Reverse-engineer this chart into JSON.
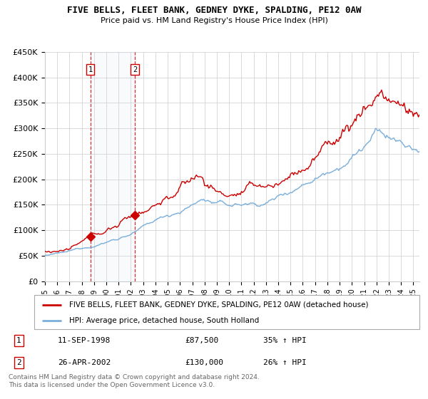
{
  "title": "FIVE BELLS, FLEET BANK, GEDNEY DYKE, SPALDING, PE12 0AW",
  "subtitle": "Price paid vs. HM Land Registry's House Price Index (HPI)",
  "ylim": [
    0,
    450000
  ],
  "yticks": [
    0,
    50000,
    100000,
    150000,
    200000,
    250000,
    300000,
    350000,
    400000,
    450000
  ],
  "ytick_labels": [
    "£0",
    "£50K",
    "£100K",
    "£150K",
    "£200K",
    "£250K",
    "£300K",
    "£350K",
    "£400K",
    "£450K"
  ],
  "grid_color": "#cccccc",
  "transaction1": {
    "label": "1",
    "date_x": 1998.69,
    "price": 87500,
    "date_str": "11-SEP-1998",
    "price_str": "£87,500",
    "hpi_str": "35% ↑ HPI"
  },
  "transaction2": {
    "label": "2",
    "date_x": 2002.32,
    "price": 130000,
    "date_str": "26-APR-2002",
    "price_str": "£130,000",
    "hpi_str": "26% ↑ HPI"
  },
  "line1_color": "#cc0000",
  "line2_color": "#7aaedb",
  "line1_label": "FIVE BELLS, FLEET BANK, GEDNEY DYKE, SPALDING, PE12 0AW (detached house)",
  "line2_label": "HPI: Average price, detached house, South Holland",
  "footer": "Contains HM Land Registry data © Crown copyright and database right 2024.\nThis data is licensed under the Open Government Licence v3.0.",
  "xmin": 1995.0,
  "xmax": 2025.5
}
